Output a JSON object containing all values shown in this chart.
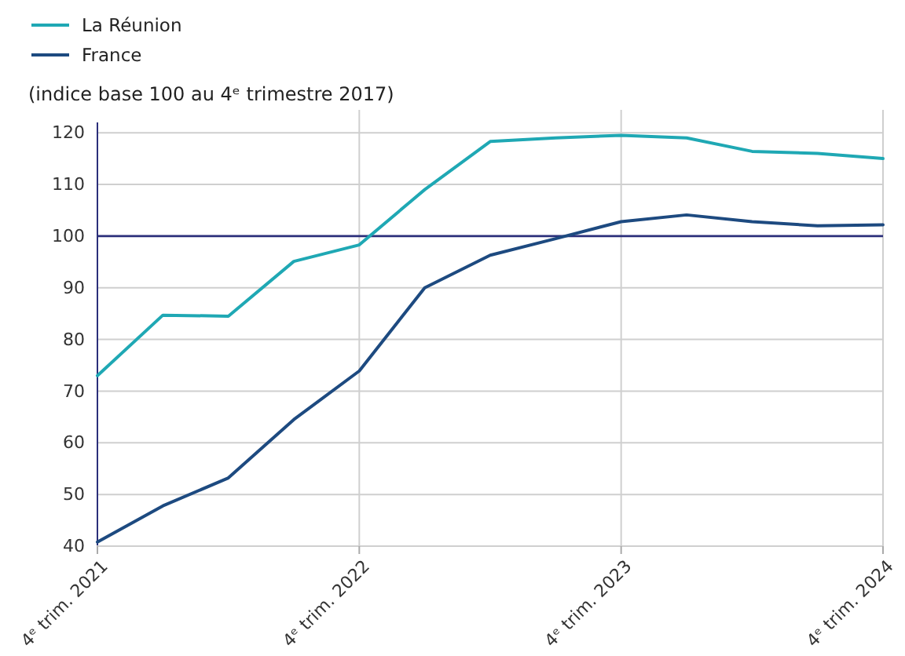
{
  "chart_data": {
    "type": "line",
    "ylabel": "(indice base 100 au 4ᵉ trimestre 2017)",
    "categories": [
      "4ᵉ trim. 2021",
      null,
      null,
      null,
      "4ᵉ trim. 2022",
      null,
      null,
      null,
      "4ᵉ trim. 2023",
      null,
      null,
      null,
      "4ᵉ trim. 2024"
    ],
    "series": [
      {
        "name": "La Réunion",
        "color": "#1fa8b4",
        "values": [
          73,
          84.7,
          84.5,
          95.1,
          98.3,
          109,
          118.3,
          119,
          119.5,
          119,
          116.4,
          116,
          115
        ]
      },
      {
        "name": "France",
        "color": "#1d4a80",
        "values": [
          40.8,
          47.8,
          53.2,
          64.5,
          73.9,
          90,
          96.3,
          99.5,
          102.8,
          104.1,
          102.8,
          102,
          102.2
        ]
      }
    ],
    "ylim": [
      40,
      122
    ],
    "yticks": [
      40,
      50,
      60,
      70,
      80,
      90,
      100,
      110,
      120
    ],
    "ref_lines": [
      {
        "axis": "y",
        "value": 100,
        "color": "#2b2f7a"
      }
    ],
    "grid": true,
    "legend": "top left",
    "marker": "none",
    "line_style": "solid"
  }
}
